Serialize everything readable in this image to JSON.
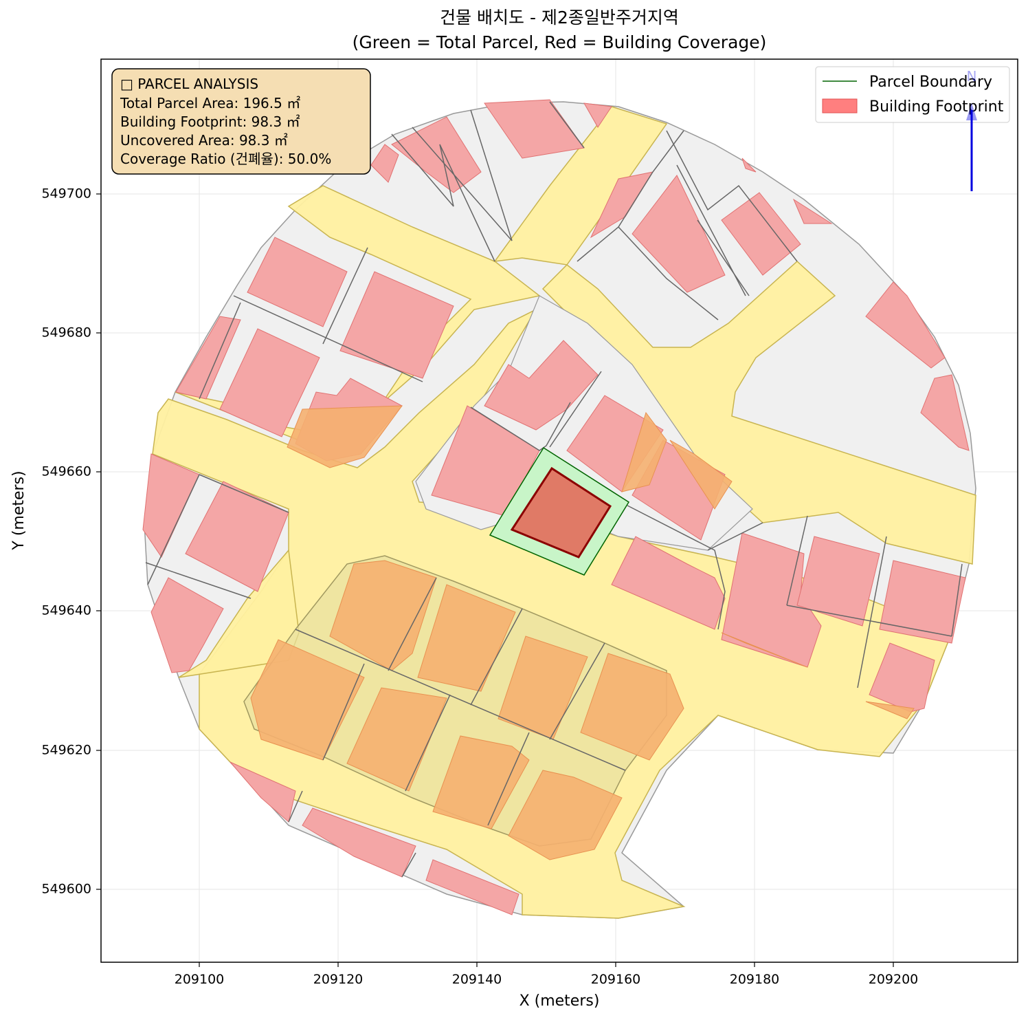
{
  "title_line1": "건물 배치도 - 제2종일반주거지역",
  "title_line2": "(Green = Total Parcel, Red = Building Coverage)",
  "xlabel": "X (meters)",
  "ylabel": "Y (meters)",
  "x_ticks": [
    "209100",
    "209120",
    "209140",
    "209160",
    "209180",
    "209200"
  ],
  "y_ticks": [
    "549600",
    "549620",
    "549640",
    "549660",
    "549680",
    "549700"
  ],
  "info_box": {
    "heading": "□ PARCEL ANALYSIS",
    "total_area": "Total Parcel Area: 196.5 ㎡",
    "footprint": "Building Footprint: 98.3 ㎡",
    "uncovered": "Uncovered Area: 98.3 ㎡",
    "coverage": "Coverage Ratio (건폐율): 50.0%"
  },
  "legend": {
    "parcel_boundary": "Parcel Boundary",
    "building_footprint": "Building Footprint"
  },
  "north_label": "N",
  "colors": {
    "parcel_fill": "#c8f5c8",
    "parcel_edge": "#006400",
    "building_fill": "#f08080",
    "building_edge": "#8b0000",
    "road_fill": "#fff0a0",
    "ground_fill": "#f0f0f0",
    "neighbor_building": "#f4a6a6",
    "orange_building": "#f5b070",
    "info_box_fill": "#f5deb3",
    "arrow": "#0000e0"
  },
  "chart_data": {
    "type": "map",
    "xlim": [
      209086,
      209218
    ],
    "ylim": [
      549590,
      549720
    ],
    "grid": true,
    "legend_position": "top-right",
    "target_parcel_area_m2": 196.5,
    "target_building_area_m2": 98.3,
    "coverage_ratio_pct": 50.0
  }
}
